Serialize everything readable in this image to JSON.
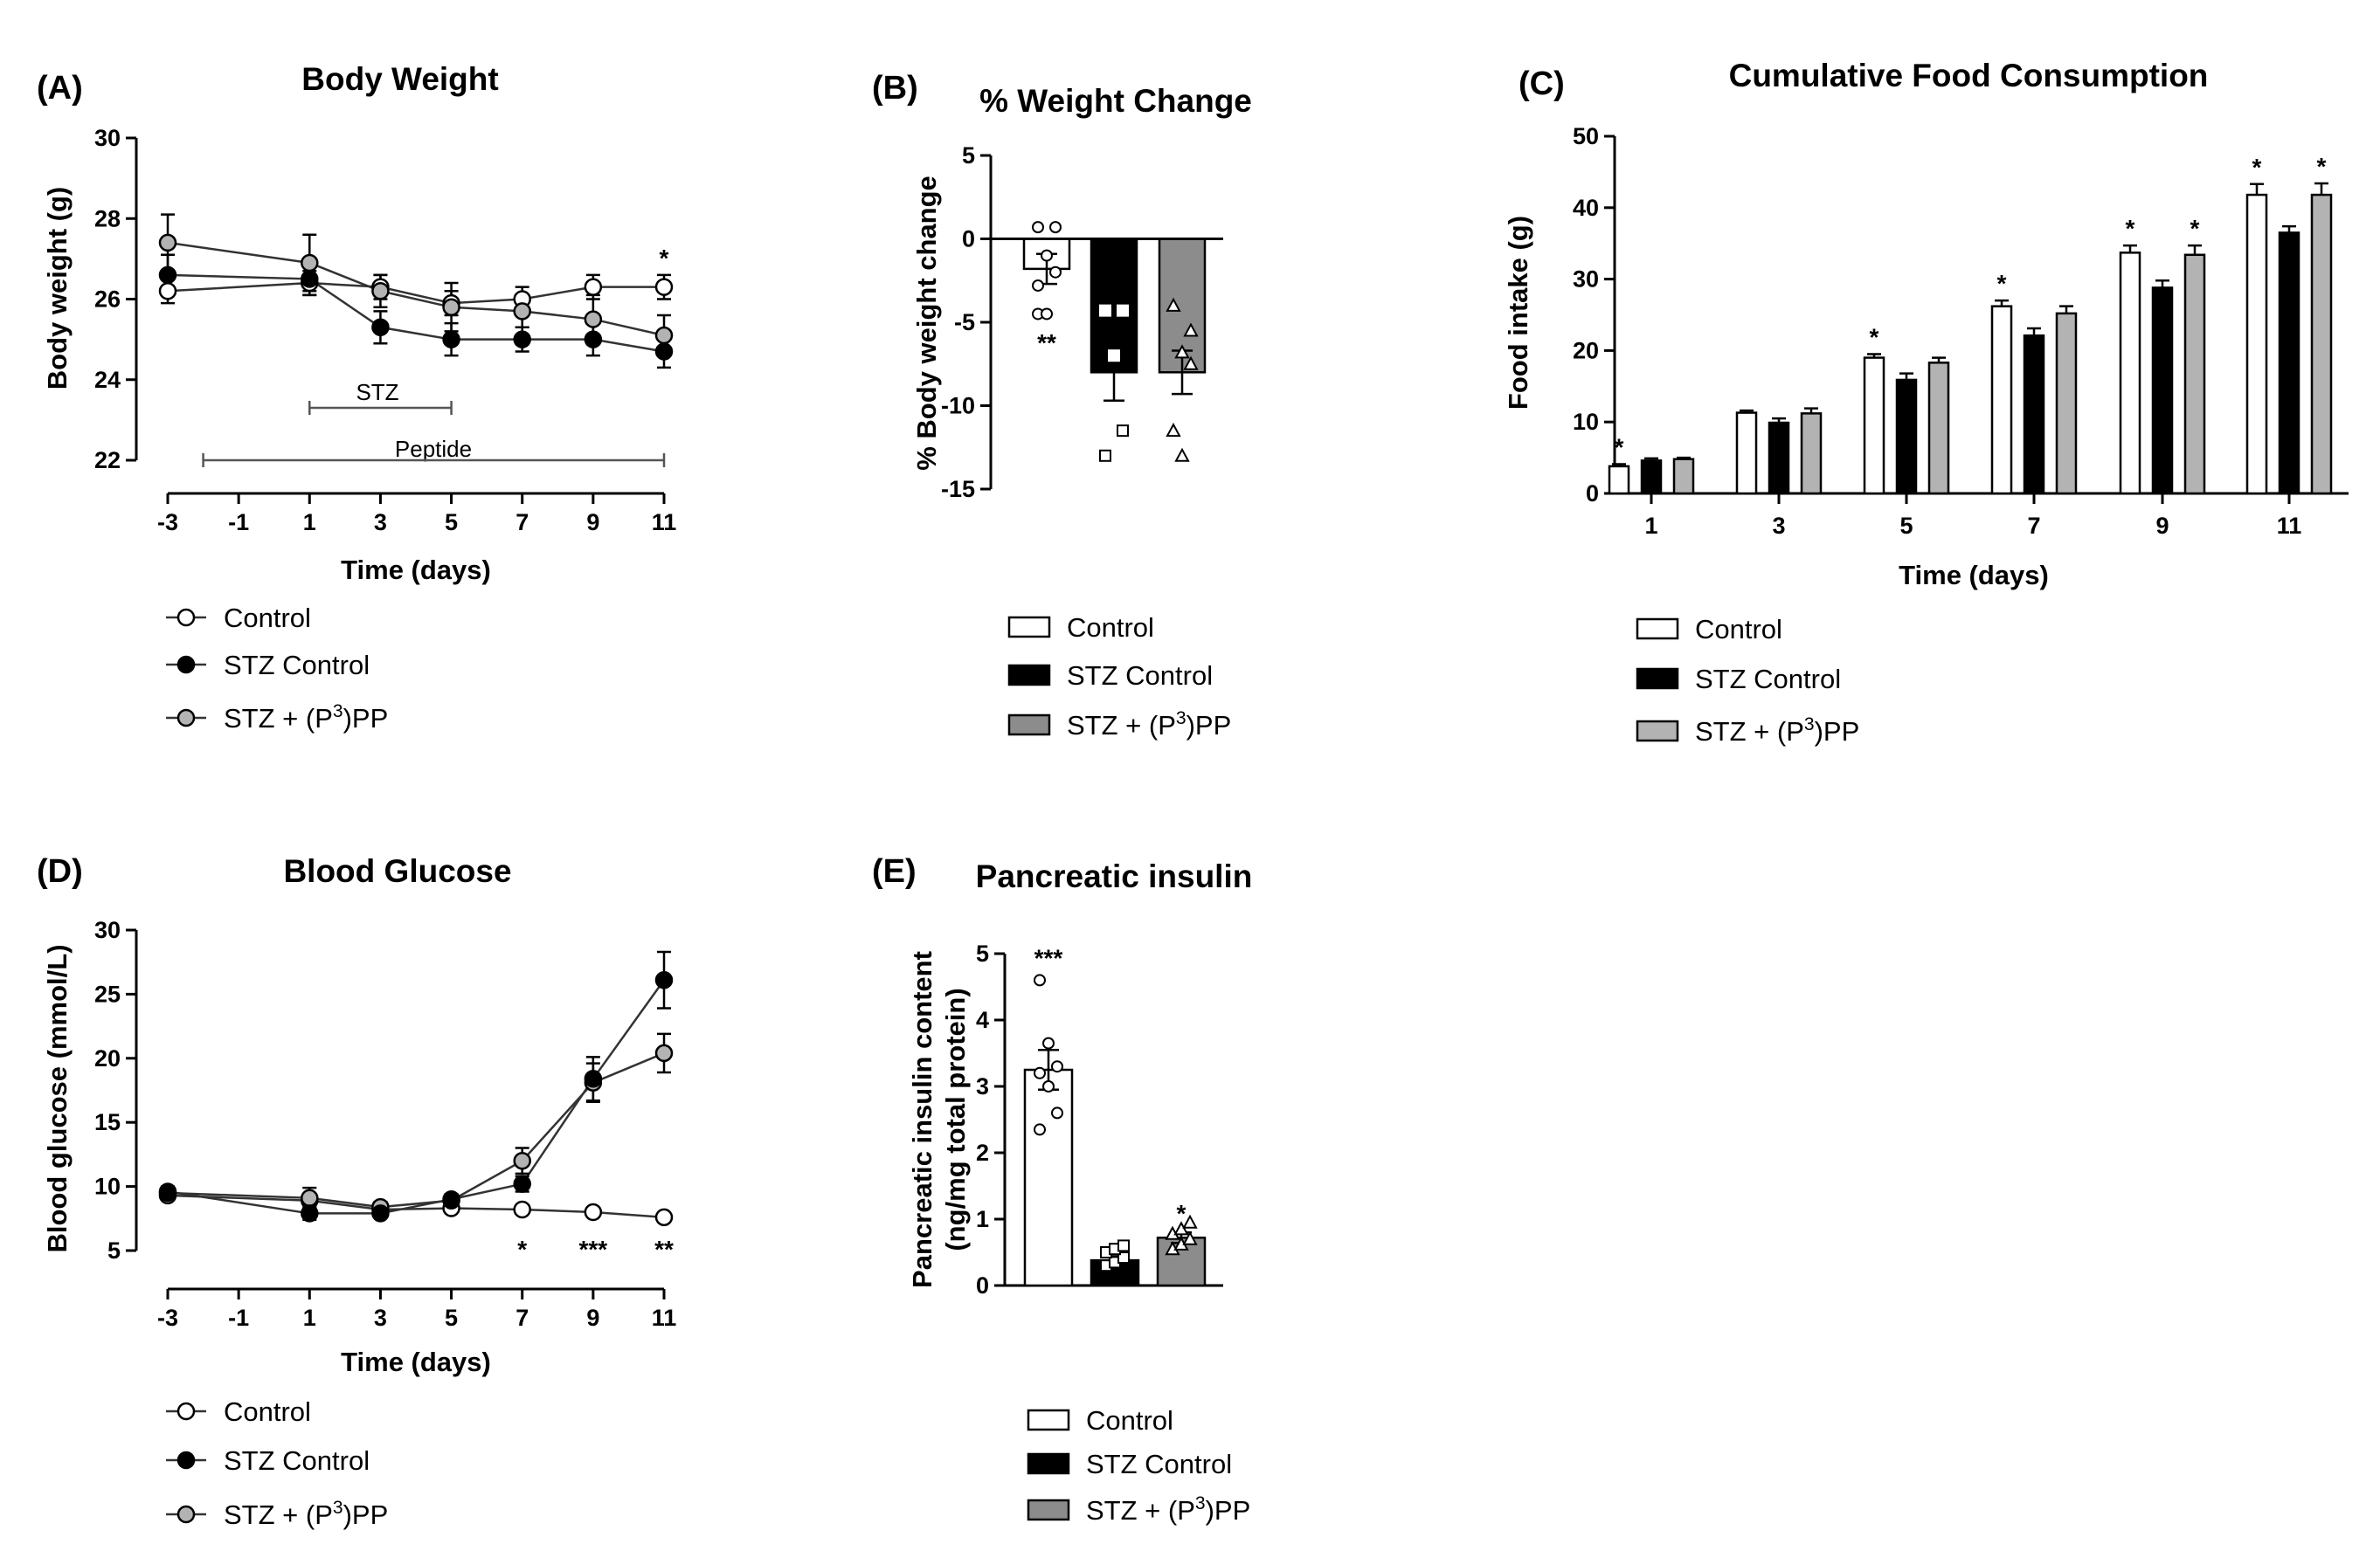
{
  "legend_labels": {
    "control": "Control",
    "stz": "STZ Control",
    "pp_prefix": "STZ + (P",
    "pp_sup": "3",
    "pp_suffix": ")PP"
  },
  "colors": {
    "control": "#ffffff",
    "stz": "#000000",
    "pp": "#8c8c8c",
    "pp_light": "#b3b3b3"
  },
  "chart_data": [
    {
      "panel": "(A)",
      "type": "line",
      "title": "Body Weight",
      "xlabel": "Time (days)",
      "ylabel": "Body weight (g)",
      "xlim": [
        -3,
        11
      ],
      "ylim": [
        22,
        30
      ],
      "xticks": [
        -3,
        -1,
        1,
        3,
        5,
        7,
        9,
        11
      ],
      "yticks": [
        22,
        24,
        26,
        28,
        30
      ],
      "x": [
        -3,
        1,
        3,
        5,
        7,
        9,
        11
      ],
      "series": [
        {
          "name": "Control",
          "values": [
            26.2,
            26.4,
            26.3,
            25.9,
            26.0,
            26.3,
            26.3
          ],
          "sem": [
            0.3,
            0.3,
            0.3,
            0.3,
            0.3,
            0.3,
            0.3
          ]
        },
        {
          "name": "STZ Control",
          "values": [
            26.6,
            26.5,
            25.3,
            25.0,
            25.0,
            25.0,
            24.7
          ],
          "sem": [
            0.5,
            0.4,
            0.4,
            0.4,
            0.3,
            0.4,
            0.4
          ]
        },
        {
          "name": "STZ + (P3)PP",
          "values": [
            27.4,
            26.9,
            26.2,
            25.8,
            25.7,
            25.5,
            25.1
          ],
          "sem": [
            0.7,
            0.7,
            0.4,
            0.6,
            0.4,
            0.6,
            0.5
          ]
        }
      ],
      "annotations": [
        {
          "x": 11,
          "text": "*"
        }
      ],
      "bars": [
        {
          "label": "STZ",
          "from": 1,
          "to": 5,
          "y": 23.3
        },
        {
          "label": "Peptide",
          "from": -2,
          "to": 11,
          "y": 22.0
        }
      ]
    },
    {
      "panel": "(B)",
      "type": "bar",
      "title": "% Weight Change",
      "ylabel": "% Body weight change",
      "ylim": [
        -15,
        5
      ],
      "yticks": [
        -15,
        -10,
        -5,
        0,
        5
      ],
      "categories": [
        "Control",
        "STZ Control",
        "STZ + (P3)PP"
      ],
      "values": [
        -1.8,
        -8.0,
        -8.0
      ],
      "sem": [
        0.9,
        1.7,
        1.3
      ],
      "points": [
        [
          0.7,
          0.7,
          -1.0,
          -2.0,
          -4.5,
          -4.5,
          -2.8
        ],
        [
          -4.3,
          -4.3,
          -7.0,
          -11.5,
          -13.0
        ],
        [
          -4.0,
          -5.5,
          -6.8,
          -7.5,
          -11.5,
          -13.0
        ]
      ],
      "annotations": [
        {
          "index": 0,
          "text": "**"
        }
      ]
    },
    {
      "panel": "(C)",
      "type": "bar",
      "title": "Cumulative Food Consumption",
      "xlabel": "Time (days)",
      "ylabel": "Food intake (g)",
      "ylim": [
        0,
        50
      ],
      "yticks": [
        0,
        10,
        20,
        30,
        40,
        50
      ],
      "categories": [
        "1",
        "3",
        "5",
        "7",
        "9",
        "11"
      ],
      "series": [
        {
          "name": "Control",
          "values": [
            3.8,
            11.3,
            19.0,
            26.2,
            33.7,
            41.8
          ],
          "sem": [
            0.3,
            0.3,
            0.5,
            0.8,
            1.0,
            1.5
          ]
        },
        {
          "name": "STZ Control",
          "values": [
            4.6,
            9.9,
            15.9,
            22.1,
            28.8,
            36.5
          ],
          "sem": [
            0.3,
            0.6,
            0.9,
            1.0,
            1.0,
            0.9
          ]
        },
        {
          "name": "STZ + (P3)PP",
          "values": [
            4.8,
            11.2,
            18.3,
            25.2,
            33.4,
            41.8
          ],
          "sem": [
            0.2,
            0.7,
            0.7,
            1.0,
            1.3,
            1.6
          ]
        }
      ],
      "annotations": [
        {
          "group": 0,
          "series": 0,
          "text": "*"
        },
        {
          "group": 2,
          "series": 0,
          "text": "*"
        },
        {
          "group": 3,
          "series": 0,
          "text": "*"
        },
        {
          "group": 4,
          "series": 0,
          "text": "*"
        },
        {
          "group": 4,
          "series": 2,
          "text": "*"
        },
        {
          "group": 5,
          "series": 0,
          "text": "*"
        },
        {
          "group": 5,
          "series": 2,
          "text": "*"
        }
      ]
    },
    {
      "panel": "(D)",
      "type": "line",
      "title": "Blood Glucose",
      "xlabel": "Time (days)",
      "ylabel": "Blood glucose (mmol/L)",
      "xlim": [
        -3,
        11
      ],
      "ylim": [
        3,
        30
      ],
      "xticks": [
        -3,
        -1,
        1,
        3,
        5,
        7,
        9,
        11
      ],
      "yticks": [
        5,
        10,
        15,
        20,
        25,
        30
      ],
      "x": [
        -3,
        1,
        3,
        5,
        7,
        9,
        11
      ],
      "series": [
        {
          "name": "Control",
          "values": [
            9.3,
            8.9,
            8.2,
            8.3,
            8.2,
            8.0,
            7.6
          ],
          "sem": [
            0.3,
            0.3,
            0.3,
            0.3,
            0.3,
            0.3,
            0.3
          ]
        },
        {
          "name": "STZ Control",
          "values": [
            9.6,
            7.9,
            7.9,
            9.0,
            10.2,
            18.4,
            26.1
          ],
          "sem": [
            0.4,
            0.5,
            0.3,
            0.4,
            0.6,
            1.7,
            2.2
          ]
        },
        {
          "name": "STZ + (P3)PP",
          "values": [
            9.5,
            9.1,
            8.4,
            8.9,
            12.0,
            18.1,
            20.4
          ],
          "sem": [
            0.4,
            0.8,
            0.4,
            0.4,
            1.0,
            1.5,
            1.5
          ]
        }
      ],
      "annotations": [
        {
          "x": 7,
          "text": "*"
        },
        {
          "x": 9,
          "text": "***"
        },
        {
          "x": 11,
          "text": "**"
        }
      ]
    },
    {
      "panel": "(E)",
      "type": "bar",
      "title": "Pancreatic insulin",
      "ylabel_lines": [
        "Pancreatic insulin content",
        "(ng/mg total protein)"
      ],
      "ylim": [
        0,
        5
      ],
      "yticks": [
        0,
        1,
        2,
        3,
        4,
        5
      ],
      "categories": [
        "Control",
        "STZ Control",
        "STZ + (P3)PP"
      ],
      "values": [
        3.25,
        0.38,
        0.72
      ],
      "sem": [
        0.3,
        0.06,
        0.08
      ],
      "points": [
        [
          4.6,
          3.65,
          3.3,
          3.2,
          3.0,
          2.6,
          2.35
        ],
        [
          0.3,
          0.35,
          0.42,
          0.5,
          0.55,
          0.6
        ],
        [
          0.55,
          0.62,
          0.7,
          0.78,
          0.85,
          0.95
        ]
      ],
      "annotations": [
        {
          "index": 0,
          "text": "***"
        },
        {
          "index": 2,
          "text": "*"
        }
      ]
    }
  ]
}
